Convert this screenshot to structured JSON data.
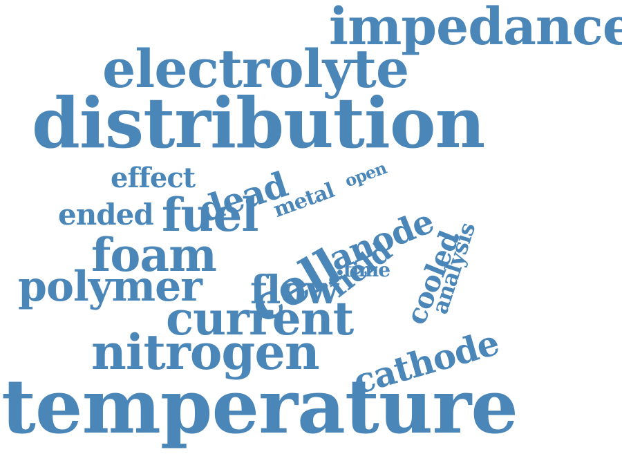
{
  "color": "#4a86b8",
  "words": [
    "impedance",
    "electrolyte",
    "distribution",
    "effect",
    "dead",
    "metal",
    "open",
    "ended",
    "fuel",
    "cell",
    "anode",
    "analysis",
    "foam",
    "field",
    "cooled",
    "polymer",
    "time",
    "flow",
    "current",
    "nitrogen",
    "cathode",
    "temperature"
  ]
}
